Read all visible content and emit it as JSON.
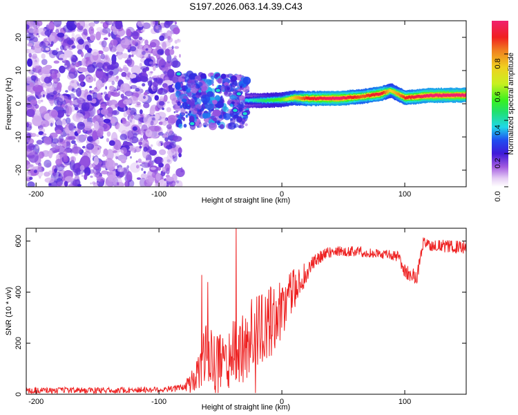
{
  "title": "S197.2026.063.14.39.C43",
  "chart_data": [
    {
      "type": "heatmap",
      "title": "S197.2026.063.14.39.C43",
      "xlabel": "Height of straight line (km)",
      "ylabel": "Frequency (Hz)",
      "xlim": [
        -208,
        150
      ],
      "ylim": [
        -25,
        25
      ],
      "xticks": [
        -200,
        -100,
        0,
        100
      ],
      "yticks": [
        -20,
        -10,
        0,
        10,
        20
      ],
      "xtick_labels": [
        "-200",
        "-100",
        "0",
        "100"
      ],
      "ytick_labels": [
        "-20",
        "-10",
        "0",
        "10",
        "20"
      ],
      "colorbar": {
        "label": "Normalized spectral amplitude",
        "range": [
          0,
          1
        ],
        "ticks": [
          0.0,
          0.2,
          0.4,
          0.6,
          0.8
        ],
        "tick_labels": [
          "0.0",
          "0.2",
          "0.4",
          "0.6",
          "0.8"
        ]
      },
      "noise_region": {
        "x_range": [
          -208,
          -80
        ],
        "y_range": [
          -25,
          25
        ],
        "level_range": [
          0.05,
          0.2
        ]
      },
      "transition_region": {
        "x_range": [
          -85,
          -28
        ],
        "y_range": [
          -7,
          9
        ],
        "level_range": [
          0.1,
          0.35
        ]
      },
      "ridge": [
        {
          "x": -30,
          "y": 1.0,
          "level": 0.35
        },
        {
          "x": -15,
          "y": 1.0,
          "level": 0.45
        },
        {
          "x": 0,
          "y": 1.2,
          "level": 0.55
        },
        {
          "x": 10,
          "y": 1.8,
          "level": 0.75
        },
        {
          "x": 20,
          "y": 1.6,
          "level": 0.9
        },
        {
          "x": 45,
          "y": 1.6,
          "level": 1.0
        },
        {
          "x": 65,
          "y": 2.2,
          "level": 0.85
        },
        {
          "x": 80,
          "y": 3.0,
          "level": 0.95
        },
        {
          "x": 88,
          "y": 4.0,
          "level": 0.7
        },
        {
          "x": 100,
          "y": 1.8,
          "level": 0.9
        },
        {
          "x": 120,
          "y": 2.5,
          "level": 1.0
        },
        {
          "x": 150,
          "y": 2.6,
          "level": 1.0
        }
      ]
    },
    {
      "type": "line",
      "xlabel": "Height of straight line (km)",
      "ylabel": "SNR (10 * v/v)",
      "xlim": [
        -208,
        150
      ],
      "ylim": [
        0,
        650
      ],
      "xticks": [
        -200,
        -100,
        0,
        100
      ],
      "yticks": [
        0,
        200,
        400,
        600
      ],
      "xtick_labels": [
        "-200",
        "-100",
        "0",
        "100"
      ],
      "ytick_labels": [
        "0",
        "200",
        "400",
        "600"
      ],
      "color": "#ee2222",
      "series": [
        {
          "name": "SNR",
          "x": [
            -208,
            -150,
            -100,
            -80,
            -70,
            -62,
            -55,
            -45,
            -35,
            -25,
            -15,
            -5,
            5,
            15,
            25,
            35,
            45,
            60,
            80,
            95,
            100,
            105,
            110,
            115,
            130,
            150
          ],
          "y": [
            15,
            15,
            18,
            25,
            60,
            160,
            120,
            140,
            170,
            230,
            260,
            300,
            380,
            440,
            510,
            550,
            560,
            560,
            550,
            540,
            480,
            470,
            460,
            590,
            580,
            575
          ],
          "noise_amplitude": [
            12,
            12,
            12,
            15,
            60,
            120,
            120,
            120,
            150,
            150,
            150,
            130,
            100,
            60,
            30,
            25,
            20,
            20,
            20,
            20,
            30,
            30,
            30,
            25,
            25,
            25
          ]
        }
      ]
    }
  ]
}
